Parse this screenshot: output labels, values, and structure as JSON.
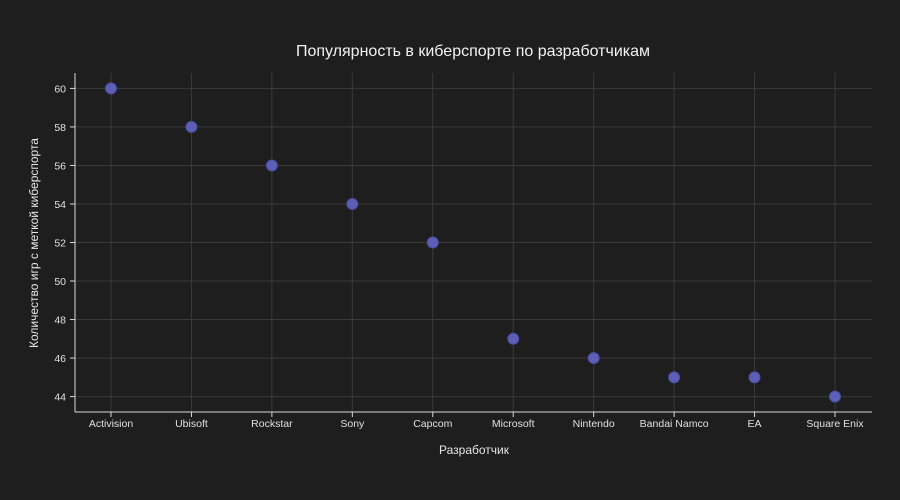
{
  "chart_data": {
    "type": "scatter",
    "title": "Популярность в киберспорте по разработчикам",
    "xlabel": "Разработчик",
    "ylabel": "Количество игр с меткой киберспорта",
    "categories": [
      "Activision",
      "Ubisoft",
      "Rockstar",
      "Sony",
      "Capcom",
      "Microsoft",
      "Nintendo",
      "Bandai Namco",
      "EA",
      "Square Enix"
    ],
    "values": [
      60,
      58,
      56,
      54,
      52,
      47,
      46,
      45,
      45,
      44
    ],
    "yticks": [
      44,
      46,
      48,
      50,
      52,
      54,
      56,
      58,
      60
    ],
    "ylim": [
      43.2,
      60.8
    ],
    "grid": true,
    "legend": "none",
    "colors": {
      "background": "#1e1e1e",
      "marker": "#5c5fb5",
      "grid": "#3a3a3a",
      "axis": "#d9d9d9",
      "text": "#e6e6e6"
    }
  }
}
